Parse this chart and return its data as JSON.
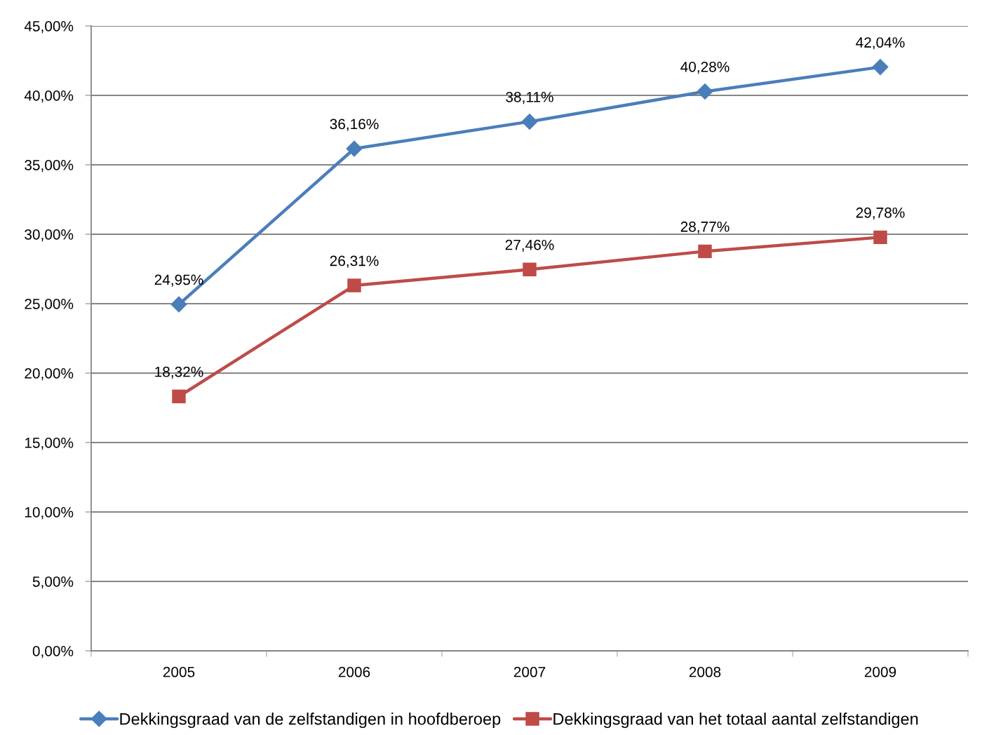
{
  "chart_data": {
    "type": "line",
    "categories": [
      "2005",
      "2006",
      "2007",
      "2008",
      "2009"
    ],
    "series": [
      {
        "name": "Dekkingsgraad van de zelfstandigen in hoofdberoep",
        "color": "#4a7ebb",
        "marker": "diamond",
        "values": [
          24.95,
          36.16,
          38.11,
          40.28,
          42.04
        ],
        "value_labels": [
          "24,95%",
          "36,16%",
          "38,11%",
          "40,28%",
          "42,04%"
        ]
      },
      {
        "name": "Dekkingsgraad van het totaal aantal zelfstandigen",
        "color": "#be4b48",
        "marker": "square",
        "values": [
          18.32,
          26.31,
          27.46,
          28.77,
          29.78
        ],
        "value_labels": [
          "18,32%",
          "26,31%",
          "27,46%",
          "28,77%",
          "29,78%"
        ]
      }
    ],
    "ylim": [
      0,
      45
    ],
    "yticks": [
      {
        "value": 0,
        "label": "0,00%"
      },
      {
        "value": 5,
        "label": "5,00%"
      },
      {
        "value": 10,
        "label": "10,00%"
      },
      {
        "value": 15,
        "label": "15,00%"
      },
      {
        "value": 20,
        "label": "20,00%"
      },
      {
        "value": 25,
        "label": "25,00%"
      },
      {
        "value": 30,
        "label": "30,00%"
      },
      {
        "value": 35,
        "label": "35,00%"
      },
      {
        "value": 40,
        "label": "40,00%"
      },
      {
        "value": 45,
        "label": "45,00%"
      }
    ],
    "grid": "y",
    "legend": "bottom",
    "line_style": "solid"
  }
}
